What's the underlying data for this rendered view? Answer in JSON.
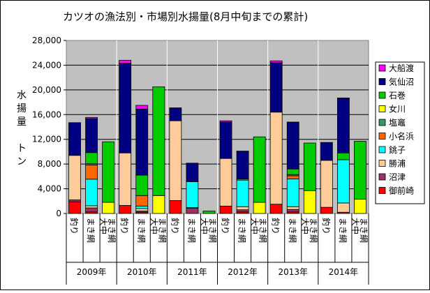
{
  "chart_data": {
    "type": "bar",
    "stacked": true,
    "title": "カツオの漁法別・市場別水揚量(8月中旬までの累計)",
    "ylabel": [
      "水",
      "揚",
      "量",
      "",
      "ト",
      "ン"
    ],
    "ylim": [
      0,
      28000
    ],
    "yticks": [
      "0",
      "4,000",
      "8,000",
      "12,000",
      "16,000",
      "20,000",
      "24,000",
      "28,000"
    ],
    "ytick_values": [
      0,
      4000,
      8000,
      12000,
      16000,
      20000,
      24000,
      28000
    ],
    "grid": true,
    "legend_position": "right",
    "years": [
      "2009年",
      "2010年",
      "2011年",
      "2012年",
      "2013年",
      "2014年"
    ],
    "methods": [
      "釣り",
      "まき網",
      "大中まき網"
    ],
    "method_labels": [
      [
        "釣り"
      ],
      [
        "まき網"
      ],
      [
        "大中",
        "まき網"
      ]
    ],
    "groups": [
      {
        "year": "2009年",
        "method": "釣り"
      },
      {
        "year": "2009年",
        "method": "まき網"
      },
      {
        "year": "2009年",
        "method": "大中まき網"
      },
      {
        "year": "2010年",
        "method": "釣り"
      },
      {
        "year": "2010年",
        "method": "まき網"
      },
      {
        "year": "2010年",
        "method": "大中まき網"
      },
      {
        "year": "2011年",
        "method": "釣り"
      },
      {
        "year": "2011年",
        "method": "まき網"
      },
      {
        "year": "2011年",
        "method": "大中まき網"
      },
      {
        "year": "2012年",
        "method": "釣り"
      },
      {
        "year": "2012年",
        "method": "まき網"
      },
      {
        "year": "2012年",
        "method": "大中まき網"
      },
      {
        "year": "2013年",
        "method": "釣り"
      },
      {
        "year": "2013年",
        "method": "まき網"
      },
      {
        "year": "2013年",
        "method": "大中まき網"
      },
      {
        "year": "2014年",
        "method": "釣り"
      },
      {
        "year": "2014年",
        "method": "まき網"
      },
      {
        "year": "2014年",
        "method": "大中まき網"
      }
    ],
    "series": [
      {
        "name": "御前崎",
        "color": "#ff0000",
        "values": [
          1900,
          250,
          0,
          1300,
          200,
          0,
          2100,
          0,
          0,
          1200,
          250,
          0,
          1500,
          250,
          0,
          1000,
          200,
          0
        ]
      },
      {
        "name": "沼津",
        "color": "#993366",
        "values": [
          300,
          650,
          0,
          0,
          200,
          0,
          0,
          850,
          0,
          0,
          350,
          0,
          0,
          400,
          0,
          0,
          0,
          0
        ]
      },
      {
        "name": "勝浦",
        "color": "#ffcc99",
        "values": [
          7200,
          350,
          0,
          8500,
          400,
          0,
          12900,
          100,
          0,
          7700,
          500,
          0,
          14900,
          450,
          0,
          7600,
          1500,
          0
        ]
      },
      {
        "name": "銚子",
        "color": "#00ffff",
        "values": [
          0,
          4300,
          0,
          0,
          400,
          0,
          0,
          4200,
          0,
          0,
          4300,
          0,
          0,
          4500,
          0,
          0,
          7000,
          0
        ]
      },
      {
        "name": "小名浜",
        "color": "#ff6600",
        "values": [
          0,
          2300,
          0,
          0,
          1700,
          0,
          0,
          0,
          0,
          0,
          0,
          0,
          0,
          500,
          0,
          0,
          0,
          0
        ]
      },
      {
        "name": "塩竈",
        "color": "#339966",
        "values": [
          0,
          200,
          0,
          0,
          0,
          0,
          0,
          0,
          0,
          0,
          0,
          0,
          0,
          200,
          0,
          0,
          0,
          0
        ]
      },
      {
        "name": "女川",
        "color": "#ffff00",
        "values": [
          0,
          0,
          1800,
          0,
          0,
          2900,
          0,
          0,
          0,
          0,
          0,
          1800,
          0,
          0,
          3700,
          0,
          0,
          2300
        ]
      },
      {
        "name": "石巻",
        "color": "#00cc00",
        "values": [
          0,
          1800,
          9800,
          0,
          3300,
          17600,
          0,
          100,
          400,
          0,
          200,
          10600,
          0,
          900,
          7700,
          0,
          1100,
          9400
        ]
      },
      {
        "name": "気仙沼",
        "color": "#000080",
        "values": [
          5300,
          5500,
          0,
          14500,
          10700,
          0,
          2100,
          2900,
          0,
          5900,
          4500,
          0,
          8000,
          7600,
          0,
          2900,
          8800,
          0
        ]
      },
      {
        "name": "大船渡",
        "color": "#ff00ff",
        "values": [
          0,
          200,
          0,
          500,
          600,
          0,
          0,
          0,
          0,
          200,
          0,
          0,
          300,
          0,
          0,
          0,
          100,
          0
        ]
      }
    ]
  }
}
